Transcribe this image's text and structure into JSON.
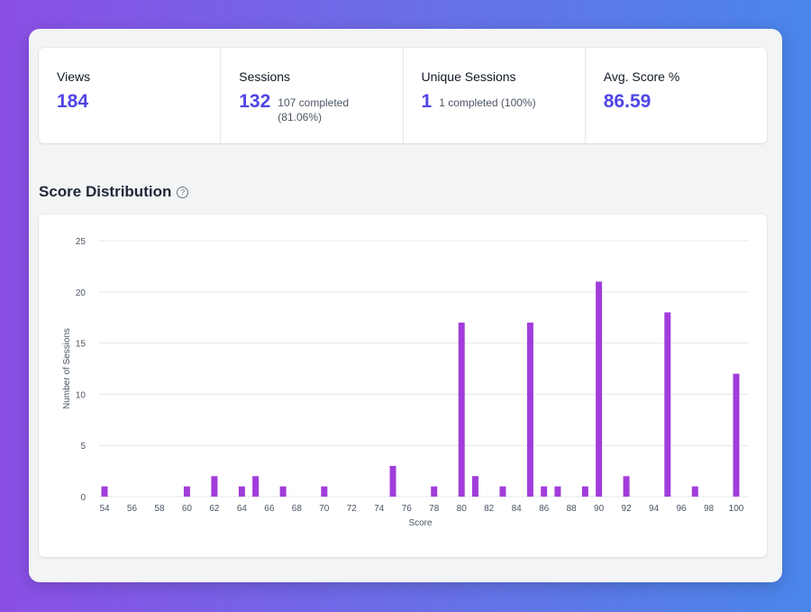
{
  "stats": [
    {
      "label": "Views",
      "value": "184",
      "sub": ""
    },
    {
      "label": "Sessions",
      "value": "132",
      "sub": "107 completed (81.06%)"
    },
    {
      "label": "Unique Sessions",
      "value": "1",
      "sub": "1 completed (100%)"
    },
    {
      "label": "Avg. Score %",
      "value": "86.59",
      "sub": ""
    }
  ],
  "section": {
    "title": "Score Distribution",
    "help_icon": "question-circle-icon"
  },
  "colors": {
    "accent": "#4f46e5",
    "bar": "#a13ddb",
    "grid": "#e5e7eb"
  },
  "chart_data": {
    "type": "bar",
    "xlabel": "Score",
    "ylabel": "Number of Sessions",
    "xlim": [
      54,
      100
    ],
    "ylim": [
      0,
      25
    ],
    "x_ticks": [
      54,
      56,
      58,
      60,
      62,
      64,
      66,
      68,
      70,
      72,
      74,
      76,
      78,
      80,
      82,
      84,
      86,
      88,
      90,
      92,
      94,
      96,
      98,
      100
    ],
    "y_ticks": [
      0,
      5,
      10,
      15,
      20,
      25
    ],
    "grid": true,
    "legend": "none",
    "x": [
      54,
      60,
      62,
      64,
      65,
      67,
      70,
      75,
      78,
      80,
      81,
      83,
      85,
      86,
      87,
      89,
      90,
      92,
      95,
      97,
      100
    ],
    "values": [
      1,
      1,
      2,
      1,
      2,
      1,
      1,
      3,
      1,
      17,
      2,
      1,
      17,
      1,
      1,
      1,
      21,
      2,
      18,
      1,
      12
    ]
  }
}
